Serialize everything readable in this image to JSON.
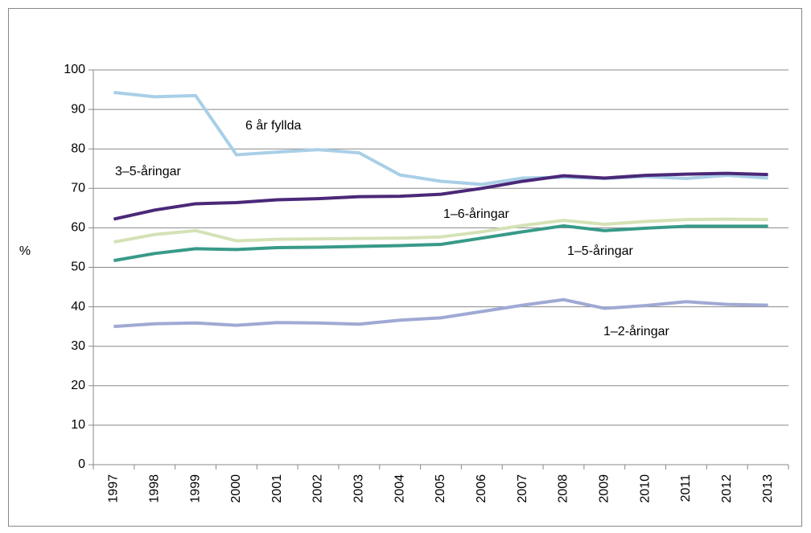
{
  "chart_data": {
    "type": "line",
    "y_label": "%",
    "categories": [
      "1997",
      "1998",
      "1999",
      "2000",
      "2001",
      "2002",
      "2003",
      "2004",
      "2005",
      "2006",
      "2007",
      "2008",
      "2009",
      "2010",
      "2011",
      "2012",
      "2013"
    ],
    "ylim": [
      0,
      100
    ],
    "yticks": [
      0,
      10,
      20,
      30,
      40,
      50,
      60,
      70,
      80,
      90,
      100
    ],
    "grid": true,
    "series": [
      {
        "name": "6 år fyllda",
        "color": "#a9cfe7",
        "values": [
          94.3,
          93.2,
          93.5,
          78.5,
          79.2,
          79.8,
          79.0,
          73.4,
          71.8,
          71.0,
          72.6,
          72.8,
          72.5,
          73.0,
          72.5,
          73.3,
          72.6
        ]
      },
      {
        "name": "3–5-åringar",
        "color": "#4b2878",
        "values": [
          62.2,
          64.5,
          66.1,
          66.4,
          67.1,
          67.4,
          67.9,
          68.0,
          68.5,
          70.0,
          71.8,
          73.2,
          72.6,
          73.3,
          73.6,
          73.8,
          73.5
        ]
      },
      {
        "name": "1–6-åringar",
        "color": "#d4e2b6",
        "values": [
          56.4,
          58.3,
          59.3,
          56.7,
          57.1,
          57.2,
          57.3,
          57.4,
          57.7,
          59.0,
          60.6,
          61.9,
          60.9,
          61.6,
          62.1,
          62.2,
          62.1
        ]
      },
      {
        "name": "1–5-åringar",
        "color": "#389a88",
        "values": [
          51.7,
          53.5,
          54.7,
          54.5,
          55.0,
          55.1,
          55.3,
          55.5,
          55.8,
          57.4,
          59.0,
          60.5,
          59.3,
          59.9,
          60.4,
          60.4,
          60.4
        ]
      },
      {
        "name": "1–2-åringar",
        "color": "#a0a9d4",
        "values": [
          35.0,
          35.7,
          35.9,
          35.3,
          36.0,
          35.9,
          35.6,
          36.6,
          37.2,
          38.8,
          40.4,
          41.8,
          39.6,
          40.3,
          41.3,
          40.6,
          40.4
        ]
      }
    ]
  }
}
